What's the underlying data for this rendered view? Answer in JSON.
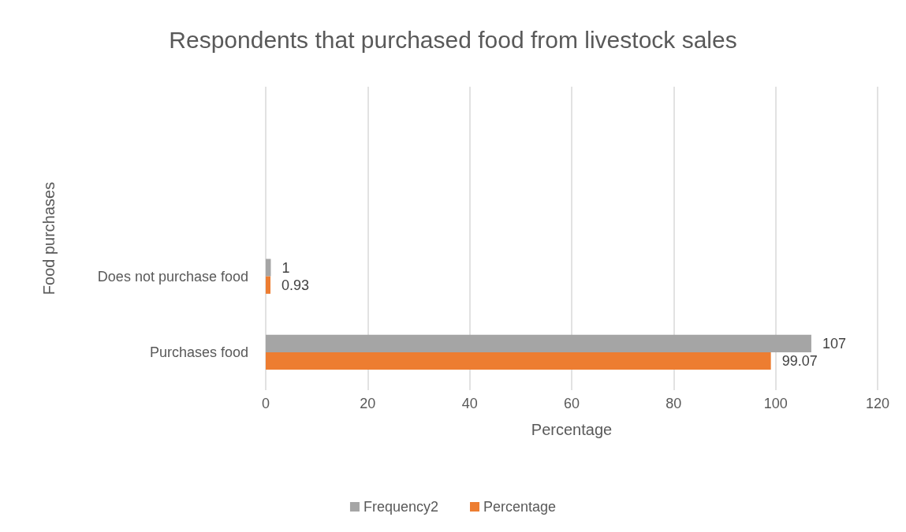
{
  "chart_data": {
    "type": "bar",
    "orientation": "horizontal",
    "title": "Respondents that purchased food from livestock sales",
    "xlabel": "Percentage",
    "ylabel": "Food purchases",
    "categories": [
      null,
      null,
      "Does not purchase food",
      "Purchases food"
    ],
    "series": [
      {
        "name": "Frequency2",
        "color": "#a5a5a5",
        "values": [
          null,
          null,
          1,
          107
        ]
      },
      {
        "name": "Percentage",
        "color": "#ed7d31",
        "values": [
          null,
          null,
          0.93,
          99.07
        ]
      }
    ],
    "xlim": [
      0,
      120
    ],
    "xticks": [
      0,
      20,
      40,
      60,
      80,
      100,
      120
    ],
    "grid": "x",
    "legend": "bottom",
    "data_labels": true
  }
}
